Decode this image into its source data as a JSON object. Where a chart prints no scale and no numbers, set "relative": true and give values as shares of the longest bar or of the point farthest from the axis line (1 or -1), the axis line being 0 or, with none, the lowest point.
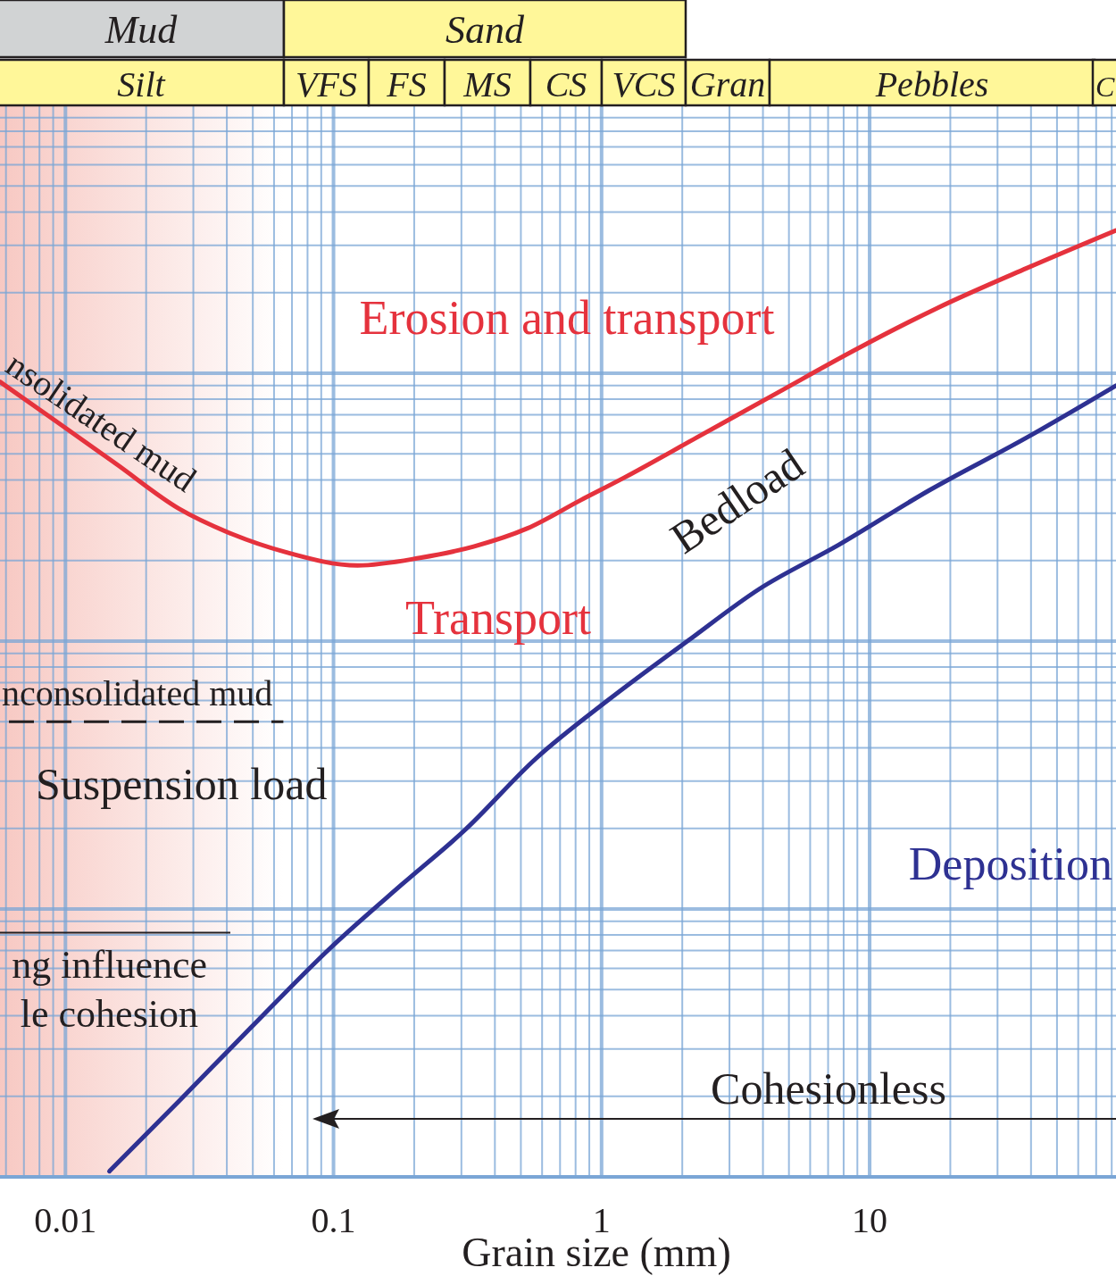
{
  "chart_data": {
    "type": "line",
    "relative": true,
    "xlabel": "Grain size (mm)",
    "log": "x",
    "grid": true,
    "xlim": [
      0.0057,
      83
    ],
    "xticks": [
      {
        "value": 0.006,
        "label": null
      },
      {
        "value": 0.007,
        "label": null
      },
      {
        "value": 0.008,
        "label": null
      },
      {
        "value": 0.009,
        "label": null
      },
      0.01,
      {
        "value": 0.02,
        "label": null
      },
      {
        "value": 0.03,
        "label": null
      },
      {
        "value": 0.04,
        "label": null
      },
      {
        "value": 0.05,
        "label": null
      },
      {
        "value": 0.06,
        "label": null
      },
      {
        "value": 0.07,
        "label": null
      },
      {
        "value": 0.08,
        "label": null
      },
      {
        "value": 0.09,
        "label": null
      },
      0.1,
      {
        "value": 0.2,
        "label": null
      },
      {
        "value": 0.3,
        "label": null
      },
      {
        "value": 0.4,
        "label": null
      },
      {
        "value": 0.5,
        "label": null
      },
      {
        "value": 0.6,
        "label": null
      },
      {
        "value": 0.7,
        "label": null
      },
      {
        "value": 0.8,
        "label": null
      },
      {
        "value": 0.9,
        "label": null
      },
      1,
      {
        "value": 2,
        "label": null
      },
      {
        "value": 3,
        "label": null
      },
      {
        "value": 4,
        "label": null
      },
      {
        "value": 5,
        "label": null
      },
      {
        "value": 6,
        "label": null
      },
      {
        "value": 7,
        "label": null
      },
      {
        "value": 8,
        "label": null
      },
      {
        "value": 9,
        "label": null
      },
      10,
      {
        "value": 20,
        "label": null
      },
      {
        "value": 30,
        "label": null
      },
      {
        "value": 40,
        "label": null
      },
      {
        "value": 50,
        "label": null
      },
      {
        "value": 60,
        "label": null
      },
      {
        "value": 70,
        "label": null
      },
      {
        "value": 80,
        "label": null
      }
    ],
    "series": [
      {
        "color": "#e5323d",
        "x": [
          0.0057,
          0.00905,
          0.0155,
          0.0265,
          0.042,
          0.0664,
          0.123,
          0.21,
          0.333,
          0.527,
          0.836,
          1.22,
          2.26,
          4.5,
          9.0,
          17.9,
          38.5,
          83
        ],
        "values": [
          0.84,
          0.8,
          0.753,
          0.706,
          0.679,
          0.66,
          0.646,
          0.654,
          0.666,
          0.685,
          0.715,
          0.739,
          0.781,
          0.828,
          0.875,
          0.918,
          0.96,
          1
        ]
      },
      {
        "color": "#2e3192",
        "x": [
          0.0146,
          0.0265,
          0.0489,
          0.0975,
          0.18,
          0.308,
          0.569,
          1.05,
          2.09,
          3.87,
          7.7,
          16.6,
          38.5,
          83
        ],
        "values": [
          0.006,
          0.08,
          0.157,
          0.242,
          0.309,
          0.366,
          0.442,
          0.503,
          0.566,
          0.621,
          0.668,
          0.725,
          0.781,
          0.836
        ]
      }
    ],
    "bands": [
      {
        "axis": "x",
        "from": 0.0057,
        "to": 0.065,
        "color": "#f6bfb8"
      }
    ],
    "ref_lines": [
      {
        "axis": "y",
        "value": 0.481,
        "label": "nconsolidated mud",
        "line_style": "dashed",
        "color": "#231f20"
      },
      {
        "axis": "y",
        "value": 0.258,
        "color": "#231f20"
      }
    ],
    "annotations": [
      "Mud",
      "Sand",
      "Silt",
      "VFS",
      "FS",
      "MS",
      "CS",
      "VCS",
      "Gran",
      "Pebbles",
      "C",
      "Erosion and transport",
      "Transport",
      "Bedload",
      "Deposition",
      "Suspension load",
      "nsolidated mud",
      "ng influence",
      "le cohesion",
      "Cohesionless"
    ]
  }
}
